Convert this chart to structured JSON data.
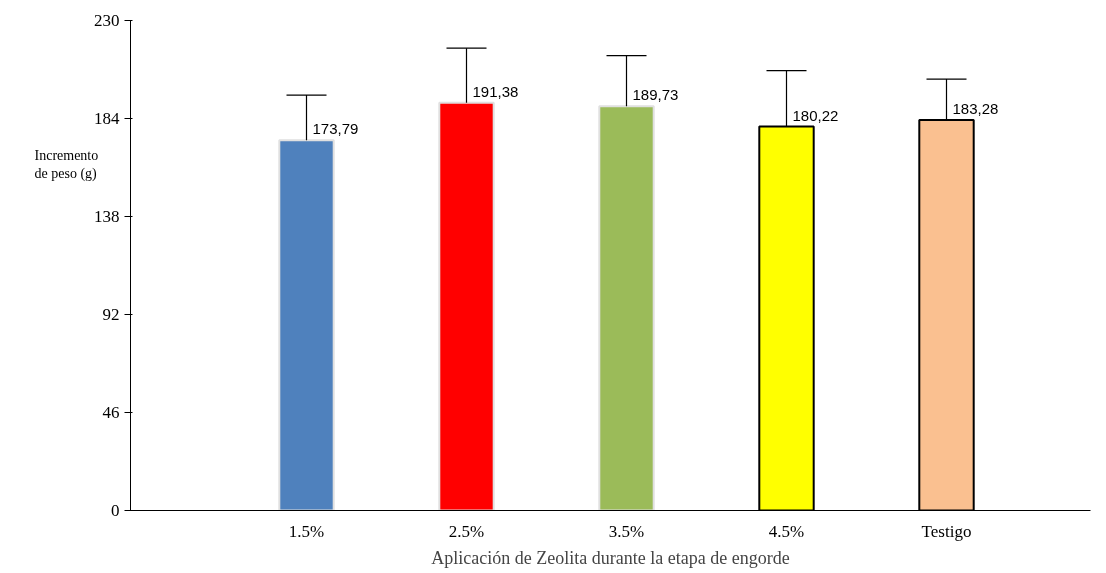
{
  "chart_data": {
    "type": "bar",
    "xlabel": "Aplicación de Zeolita durante la etapa de engorde",
    "ylabel": "Incremento de peso (g)",
    "categories": [
      "1.5%",
      "2.5%",
      "3.5%",
      "4.5%",
      "Testigo"
    ],
    "values": [
      173.79,
      191.38,
      189.73,
      180.22,
      183.28
    ],
    "colors": [
      "#4f81bd",
      "#ff0000",
      "#9bbb59",
      "#ffff00",
      "#fac090"
    ],
    "errors": [
      [
        173.79,
        195
      ],
      [
        191.38,
        217
      ],
      [
        189.73,
        213.5
      ],
      [
        180.22,
        206.5
      ],
      [
        183.28,
        202.5
      ]
    ],
    "value_labels": [
      "173,79",
      "191,38",
      "189,73",
      "180,22",
      "183,28"
    ],
    "ylim": [
      0,
      230
    ],
    "yticks": [
      0,
      46,
      92,
      138,
      184,
      230
    ],
    "grid": false
  }
}
